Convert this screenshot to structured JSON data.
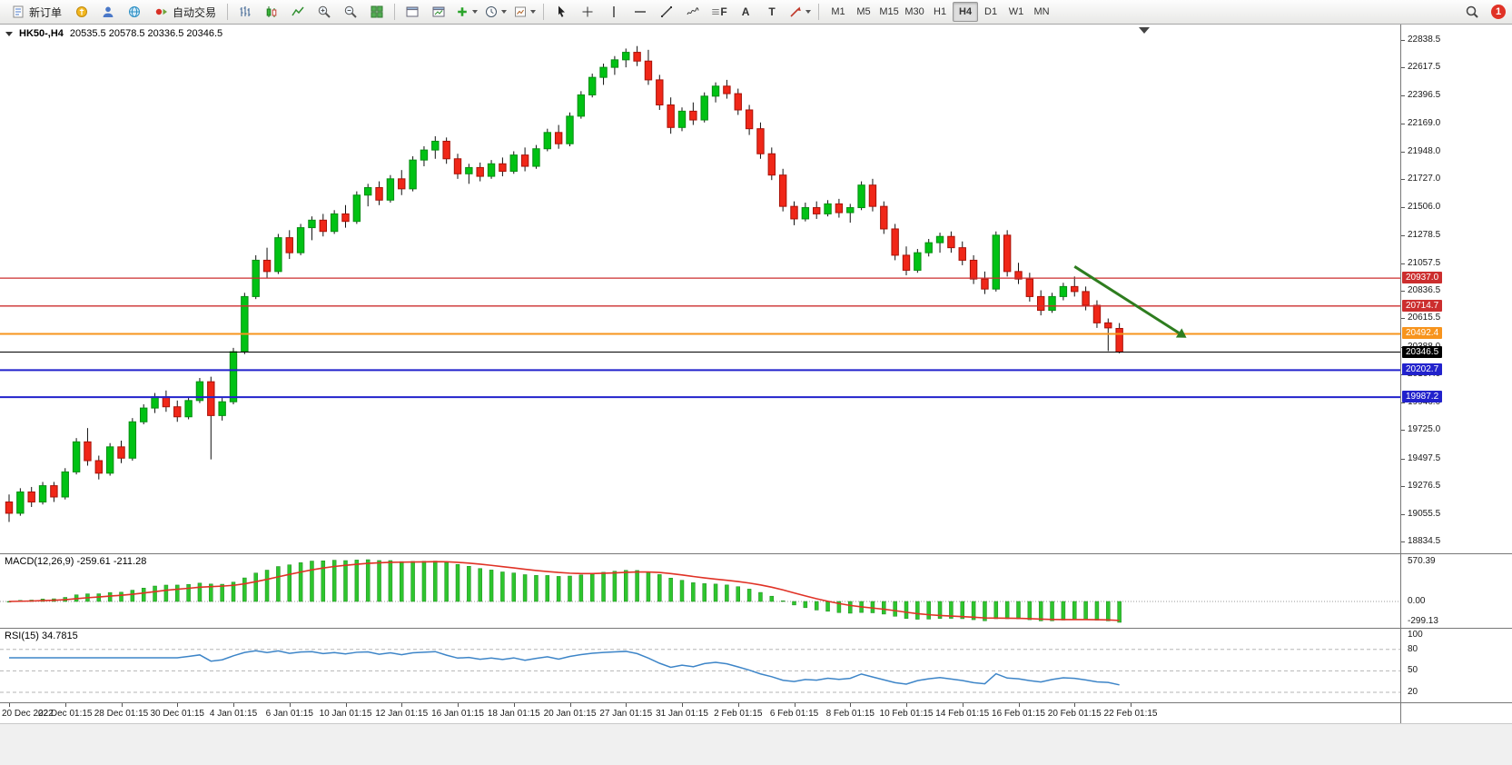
{
  "toolbar": {
    "new_order": "新订单",
    "auto_trading": "自动交易",
    "a_label": "A",
    "t_label": "T",
    "f_label": "F",
    "timeframes": [
      "M1",
      "M5",
      "M15",
      "M30",
      "H1",
      "H4",
      "D1",
      "W1",
      "MN"
    ],
    "active_timeframe": "H4",
    "notification_count": "1"
  },
  "chart_data": {
    "type": "candlestick",
    "symbol_header": "HK50-,H4",
    "ohlc_text": "20535.5 20578.5 20336.5 20346.5",
    "y_range": [
      18834.5,
      22838.5
    ],
    "y_axis_labels": [
      "22838.5",
      "22617.5",
      "22396.5",
      "22169.0",
      "21948.0",
      "21727.0",
      "21506.0",
      "21278.5",
      "21057.5",
      "20836.5",
      "20615.5",
      "20388.0",
      "20167.0",
      "19946.0",
      "19725.0",
      "19497.5",
      "19276.5",
      "19055.5",
      "18834.5"
    ],
    "x_labels": [
      "20 Dec 2022",
      "22 Dec 01:15",
      "28 Dec 01:15",
      "30 Dec 01:15",
      "4 Jan 01:15",
      "6 Jan 01:15",
      "10 Jan 01:15",
      "12 Jan 01:15",
      "16 Jan 01:15",
      "18 Jan 01:15",
      "20 Jan 01:15",
      "27 Jan 01:15",
      "31 Jan 01:15",
      "2 Feb 01:15",
      "6 Feb 01:15",
      "8 Feb 01:15",
      "10 Feb 01:15",
      "14 Feb 01:15",
      "16 Feb 01:15",
      "20 Feb 01:15",
      "22 Feb 01:15"
    ],
    "horizontal_lines": [
      {
        "price": 20937.0,
        "label": "20937.0",
        "color": "#cc2e2e",
        "width": 1.3
      },
      {
        "price": 20714.7,
        "label": "20714.7",
        "color": "#cc2e2e",
        "width": 1.3
      },
      {
        "price": 20492.4,
        "label": "20492.4",
        "color": "#f7941d",
        "width": 2
      },
      {
        "price": 20346.5,
        "label": "20346.5",
        "color": "#000000",
        "width": 1
      },
      {
        "price": 20202.7,
        "label": "20202.7",
        "color": "#2222cc",
        "width": 2
      },
      {
        "price": 19987.2,
        "label": "19987.2",
        "color": "#2222cc",
        "width": 2
      }
    ],
    "arrow_annotation": {
      "color": "#2e7d1f",
      "from_index": 95,
      "from_price": 21030,
      "to_index": 104.3,
      "to_price": 20500
    },
    "colors": {
      "up": "#00c214",
      "up_border": "#068d12",
      "down": "#f02718",
      "down_border": "#a81208",
      "wick": "#111111"
    },
    "candles": [
      [
        19150,
        19210,
        18990,
        19060
      ],
      [
        19060,
        19260,
        19040,
        19230
      ],
      [
        19230,
        19270,
        19110,
        19150
      ],
      [
        19150,
        19310,
        19130,
        19280
      ],
      [
        19280,
        19310,
        19150,
        19190
      ],
      [
        19190,
        19420,
        19170,
        19390
      ],
      [
        19390,
        19660,
        19370,
        19630
      ],
      [
        19630,
        19740,
        19440,
        19480
      ],
      [
        19480,
        19520,
        19330,
        19380
      ],
      [
        19380,
        19620,
        19360,
        19590
      ],
      [
        19590,
        19640,
        19460,
        19500
      ],
      [
        19500,
        19820,
        19480,
        19790
      ],
      [
        19790,
        19930,
        19770,
        19900
      ],
      [
        19900,
        20020,
        19860,
        19990
      ],
      [
        19990,
        20040,
        19870,
        19910
      ],
      [
        19910,
        19960,
        19790,
        19830
      ],
      [
        19830,
        19990,
        19810,
        19960
      ],
      [
        19960,
        20140,
        19940,
        20110
      ],
      [
        20110,
        20150,
        19490,
        19840
      ],
      [
        19840,
        19980,
        19800,
        19950
      ],
      [
        19950,
        20380,
        19930,
        20350
      ],
      [
        20350,
        20820,
        20330,
        20790
      ],
      [
        20790,
        21120,
        20770,
        21080
      ],
      [
        21080,
        21180,
        20940,
        20990
      ],
      [
        20990,
        21290,
        20970,
        21260
      ],
      [
        21260,
        21320,
        21090,
        21140
      ],
      [
        21140,
        21370,
        21120,
        21340
      ],
      [
        21340,
        21430,
        21240,
        21400
      ],
      [
        21400,
        21450,
        21270,
        21310
      ],
      [
        21310,
        21480,
        21290,
        21450
      ],
      [
        21450,
        21520,
        21340,
        21390
      ],
      [
        21390,
        21630,
        21370,
        21600
      ],
      [
        21600,
        21690,
        21510,
        21660
      ],
      [
        21660,
        21710,
        21520,
        21560
      ],
      [
        21560,
        21760,
        21540,
        21730
      ],
      [
        21730,
        21800,
        21600,
        21650
      ],
      [
        21650,
        21910,
        21630,
        21880
      ],
      [
        21880,
        21990,
        21830,
        21960
      ],
      [
        21960,
        22070,
        21890,
        22030
      ],
      [
        22030,
        22060,
        21850,
        21890
      ],
      [
        21890,
        21930,
        21730,
        21770
      ],
      [
        21770,
        21850,
        21690,
        21820
      ],
      [
        21820,
        21860,
        21710,
        21750
      ],
      [
        21750,
        21880,
        21730,
        21850
      ],
      [
        21850,
        21900,
        21750,
        21790
      ],
      [
        21790,
        21950,
        21770,
        21920
      ],
      [
        21920,
        21980,
        21790,
        21830
      ],
      [
        21830,
        22000,
        21810,
        21970
      ],
      [
        21970,
        22130,
        21950,
        22100
      ],
      [
        22100,
        22160,
        21970,
        22010
      ],
      [
        22010,
        22260,
        21990,
        22230
      ],
      [
        22230,
        22430,
        22210,
        22400
      ],
      [
        22400,
        22570,
        22380,
        22540
      ],
      [
        22540,
        22650,
        22480,
        22620
      ],
      [
        22620,
        22710,
        22560,
        22680
      ],
      [
        22680,
        22770,
        22620,
        22740
      ],
      [
        22740,
        22790,
        22630,
        22670
      ],
      [
        22670,
        22760,
        22480,
        22520
      ],
      [
        22520,
        22560,
        22280,
        22320
      ],
      [
        22320,
        22380,
        22090,
        22140
      ],
      [
        22140,
        22300,
        22110,
        22270
      ],
      [
        22270,
        22340,
        22160,
        22200
      ],
      [
        22200,
        22420,
        22180,
        22390
      ],
      [
        22390,
        22500,
        22340,
        22470
      ],
      [
        22470,
        22520,
        22370,
        22410
      ],
      [
        22410,
        22450,
        22240,
        22280
      ],
      [
        22280,
        22320,
        22080,
        22130
      ],
      [
        22130,
        22180,
        21890,
        21930
      ],
      [
        21930,
        21980,
        21720,
        21760
      ],
      [
        21760,
        21810,
        21470,
        21510
      ],
      [
        21510,
        21550,
        21360,
        21410
      ],
      [
        21410,
        21540,
        21390,
        21500
      ],
      [
        21500,
        21550,
        21410,
        21450
      ],
      [
        21450,
        21560,
        21430,
        21530
      ],
      [
        21530,
        21570,
        21420,
        21460
      ],
      [
        21460,
        21530,
        21380,
        21500
      ],
      [
        21500,
        21710,
        21480,
        21680
      ],
      [
        21680,
        21730,
        21470,
        21510
      ],
      [
        21510,
        21550,
        21290,
        21330
      ],
      [
        21330,
        21370,
        21080,
        21120
      ],
      [
        21120,
        21190,
        20960,
        21000
      ],
      [
        21000,
        21170,
        20980,
        21140
      ],
      [
        21140,
        21250,
        21110,
        21220
      ],
      [
        21220,
        21300,
        21140,
        21270
      ],
      [
        21270,
        21310,
        21140,
        21180
      ],
      [
        21180,
        21230,
        21040,
        21080
      ],
      [
        21080,
        21120,
        20890,
        20930
      ],
      [
        20930,
        20990,
        20810,
        20850
      ],
      [
        20850,
        21310,
        20830,
        21280
      ],
      [
        21280,
        21320,
        20950,
        20990
      ],
      [
        20990,
        21060,
        20890,
        20930
      ],
      [
        20930,
        20980,
        20750,
        20790
      ],
      [
        20790,
        20840,
        20640,
        20680
      ],
      [
        20680,
        20820,
        20660,
        20790
      ],
      [
        20790,
        20900,
        20760,
        20870
      ],
      [
        20870,
        20950,
        20790,
        20830
      ],
      [
        20830,
        20870,
        20680,
        20720
      ],
      [
        20720,
        20760,
        20540,
        20580
      ],
      [
        20580,
        20615,
        20355,
        20540
      ],
      [
        20535.5,
        20578.5,
        20336.5,
        20346.5
      ]
    ]
  },
  "indicators": {
    "macd_label": "MACD(12,26,9) -259.61 -211.28",
    "macd_params": [
      12,
      26,
      9
    ],
    "macd_values_text": [
      "-259.61",
      "-211.28"
    ],
    "macd_axis_labels": [
      "570.39",
      "0.00",
      "-299.13"
    ],
    "macd_hist_color": "#2ec52e",
    "macd_signal_color": "#e03226",
    "rsi_label": "RSI(15) 34.7815",
    "rsi_period": 15,
    "rsi_value_text": "34.7815",
    "rsi_axis_labels": [
      "100",
      "80",
      "50",
      "20"
    ],
    "rsi_levels": [
      80,
      50,
      20
    ],
    "rsi_line_color": "#3d85c8"
  }
}
